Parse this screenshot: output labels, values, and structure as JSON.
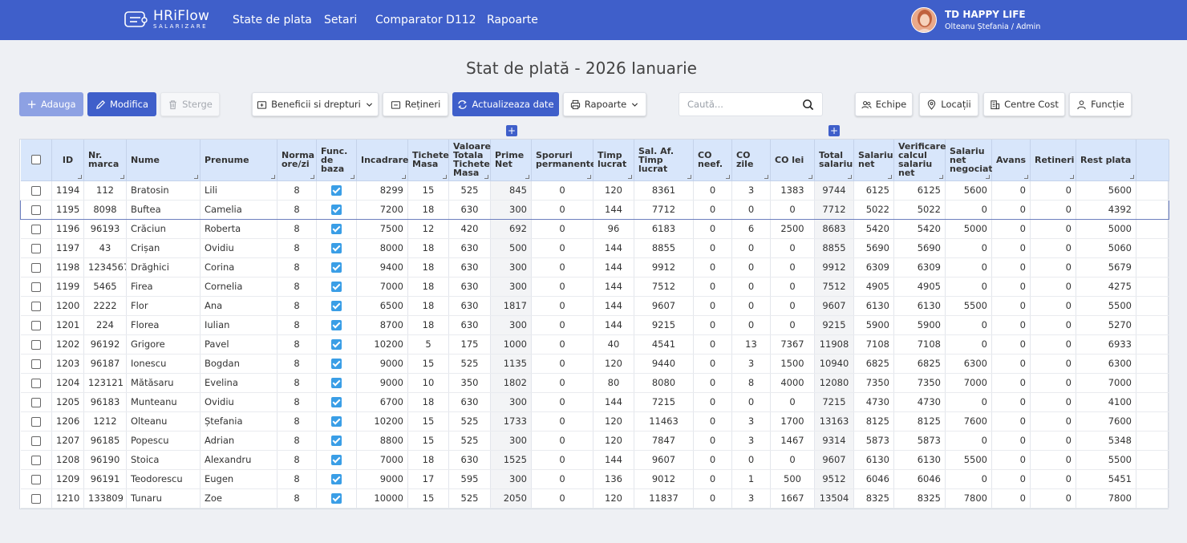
{
  "brand": {
    "name": "HRiFlow",
    "sub": "SALARIZARE"
  },
  "nav": [
    "State de plata",
    "Setari",
    "Comparator D112",
    "Rapoarte"
  ],
  "user": {
    "company": "TD HAPPY LIFE",
    "name": "Olteanu Ștefania / Admin"
  },
  "page_title": "Stat de plată - 2026 Ianuarie",
  "toolbar": {
    "add": "Adauga",
    "edit": "Modifica",
    "delete": "Sterge",
    "benefits": "Beneficii si drepturi",
    "deductions": "Rețineri",
    "refresh": "Actualizeaza date",
    "reports": "Rapoarte",
    "search_placeholder": "Caută...",
    "teams": "Echipe",
    "locations": "Locații",
    "cost_centers": "Centre Cost",
    "functions": "Funcție"
  },
  "columns": [
    "ID",
    "Nr. marca",
    "Nume",
    "Prenume",
    "Norma ore/zi",
    "Func. de baza",
    "Incadrare",
    "Tichete Masa",
    "Valoare Totala Tichete Masa",
    "Prime Net",
    "Sporuri permanente",
    "Timp lucrat",
    "Sal. Af. Timp lucrat",
    "CO neef.",
    "CO zile",
    "CO lei",
    "Total salariu",
    "Salariu net",
    "Verificare calcul salariu net",
    "Salariu net negociat",
    "Avans",
    "Retineri",
    "Rest plata"
  ],
  "rows": [
    [
      "1194",
      "112",
      "Bratosin",
      "Lili",
      "8",
      "",
      "8299",
      "15",
      "525",
      "845",
      "0",
      "120",
      "8361",
      "0",
      "3",
      "1383",
      "9744",
      "6125",
      "6125",
      "5600",
      "0",
      "0",
      "5600"
    ],
    [
      "1195",
      "8098",
      "Buftea",
      "Camelia",
      "8",
      "",
      "7200",
      "18",
      "630",
      "300",
      "0",
      "144",
      "7712",
      "0",
      "0",
      "0",
      "7712",
      "5022",
      "5022",
      "0",
      "0",
      "0",
      "4392"
    ],
    [
      "1196",
      "96193",
      "Crăciun",
      "Roberta",
      "8",
      "",
      "7500",
      "12",
      "420",
      "692",
      "0",
      "96",
      "6183",
      "0",
      "6",
      "2500",
      "8683",
      "5420",
      "5420",
      "5000",
      "0",
      "0",
      "5000"
    ],
    [
      "1197",
      "43",
      "Crișan",
      "Ovidiu",
      "8",
      "",
      "8000",
      "18",
      "630",
      "500",
      "0",
      "144",
      "8855",
      "0",
      "0",
      "0",
      "8855",
      "5690",
      "5690",
      "0",
      "0",
      "0",
      "5060"
    ],
    [
      "1198",
      "1234567",
      "Drăghici",
      "Corina",
      "8",
      "",
      "9400",
      "18",
      "630",
      "300",
      "0",
      "144",
      "9912",
      "0",
      "0",
      "0",
      "9912",
      "6309",
      "6309",
      "0",
      "0",
      "0",
      "5679"
    ],
    [
      "1199",
      "5465",
      "Firea",
      "Cornelia",
      "8",
      "",
      "7000",
      "18",
      "630",
      "300",
      "0",
      "144",
      "7512",
      "0",
      "0",
      "0",
      "7512",
      "4905",
      "4905",
      "0",
      "0",
      "0",
      "4275"
    ],
    [
      "1200",
      "2222",
      "Flor",
      "Ana",
      "8",
      "",
      "6500",
      "18",
      "630",
      "1817",
      "0",
      "144",
      "9607",
      "0",
      "0",
      "0",
      "9607",
      "6130",
      "6130",
      "5500",
      "0",
      "0",
      "5500"
    ],
    [
      "1201",
      "224",
      "Florea",
      "Iulian",
      "8",
      "",
      "8700",
      "18",
      "630",
      "300",
      "0",
      "144",
      "9215",
      "0",
      "0",
      "0",
      "9215",
      "5900",
      "5900",
      "0",
      "0",
      "0",
      "5270"
    ],
    [
      "1202",
      "96192",
      "Grigore",
      "Pavel",
      "8",
      "",
      "10200",
      "5",
      "175",
      "1000",
      "0",
      "40",
      "4541",
      "0",
      "13",
      "7367",
      "11908",
      "7108",
      "7108",
      "0",
      "0",
      "0",
      "6933"
    ],
    [
      "1203",
      "96187",
      "Ionescu",
      "Bogdan",
      "8",
      "",
      "9000",
      "15",
      "525",
      "1135",
      "0",
      "120",
      "9440",
      "0",
      "3",
      "1500",
      "10940",
      "6825",
      "6825",
      "6300",
      "0",
      "0",
      "6300"
    ],
    [
      "1204",
      "123121",
      "Mătăsaru",
      "Evelina",
      "8",
      "",
      "9000",
      "10",
      "350",
      "1802",
      "0",
      "80",
      "8080",
      "0",
      "8",
      "4000",
      "12080",
      "7350",
      "7350",
      "7000",
      "0",
      "0",
      "7000"
    ],
    [
      "1205",
      "96183",
      "Munteanu",
      "Ovidiu",
      "8",
      "",
      "6700",
      "18",
      "630",
      "300",
      "0",
      "144",
      "7215",
      "0",
      "0",
      "0",
      "7215",
      "4730",
      "4730",
      "0",
      "0",
      "0",
      "4100"
    ],
    [
      "1206",
      "1212",
      "Olteanu",
      "Ștefania",
      "8",
      "",
      "10200",
      "15",
      "525",
      "1733",
      "0",
      "120",
      "11463",
      "0",
      "3",
      "1700",
      "13163",
      "8125",
      "8125",
      "7600",
      "0",
      "0",
      "7600"
    ],
    [
      "1207",
      "96185",
      "Popescu",
      "Adrian",
      "8",
      "",
      "8800",
      "15",
      "525",
      "300",
      "0",
      "120",
      "7847",
      "0",
      "3",
      "1467",
      "9314",
      "5873",
      "5873",
      "0",
      "0",
      "0",
      "5348"
    ],
    [
      "1208",
      "96190",
      "Stoica",
      "Alexandru",
      "8",
      "",
      "7000",
      "18",
      "630",
      "1525",
      "0",
      "144",
      "9607",
      "0",
      "0",
      "0",
      "9607",
      "6130",
      "6130",
      "5500",
      "0",
      "0",
      "5500"
    ],
    [
      "1209",
      "96191",
      "Teodorescu",
      "Eugen",
      "8",
      "",
      "9000",
      "17",
      "595",
      "300",
      "0",
      "136",
      "9012",
      "0",
      "1",
      "500",
      "9512",
      "6046",
      "6046",
      "0",
      "0",
      "0",
      "5451"
    ],
    [
      "1210",
      "133809",
      "Tunaru",
      "Zoe",
      "8",
      "",
      "10000",
      "15",
      "525",
      "2050",
      "0",
      "120",
      "11837",
      "0",
      "3",
      "1667",
      "13504",
      "8325",
      "8325",
      "7800",
      "0",
      "0",
      "7800"
    ]
  ]
}
